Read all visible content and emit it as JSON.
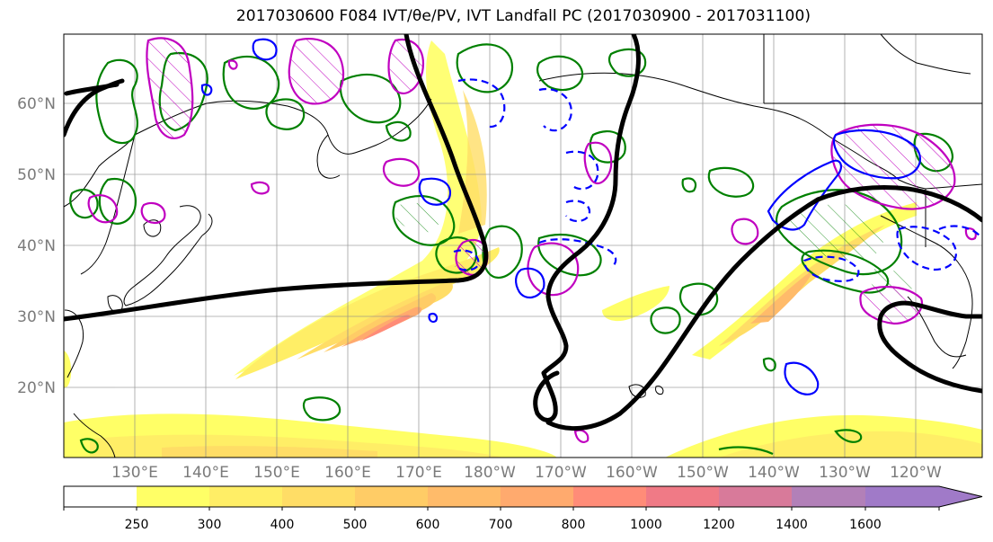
{
  "title": "2017030600 F084 IVT/θe/PV, IVT Landfall PC (2017030900 - 2017031100)",
  "latitude_labels": [
    "60°N",
    "50°N",
    "40°N",
    "30°N",
    "20°N"
  ],
  "longitude_labels": [
    "130°E",
    "140°E",
    "150°E",
    "160°E",
    "170°E",
    "180°W",
    "170°W",
    "160°W",
    "150°W",
    "140°W",
    "130°W",
    "120°W"
  ],
  "colorbar": {
    "ticks": [
      "250",
      "300",
      "400",
      "500",
      "600",
      "700",
      "800",
      "1000",
      "1200",
      "1400",
      "1600"
    ],
    "colors": [
      "#ffffff",
      "#ffff66",
      "#ffee66",
      "#ffdd66",
      "#ffcc66",
      "#ffbb6a",
      "#ffaa6e",
      "#ff8c78",
      "#f07a86",
      "#d87a9a",
      "#b280b8",
      "#a07ac8"
    ]
  },
  "legend_colors": {
    "theta_e": "#008000",
    "pv_magenta": "#c000c0",
    "pv_blue": "#0000ff",
    "pc_line": "#000000",
    "coast": "#000000",
    "grid": "#888888"
  }
}
